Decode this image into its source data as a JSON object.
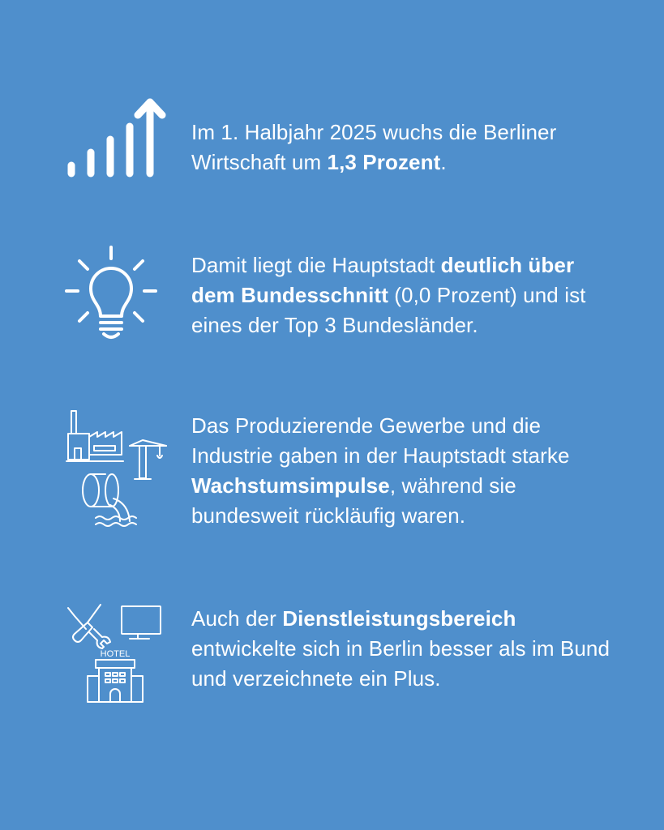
{
  "background_color": "#4f8fcc",
  "blocks": [
    {
      "icon": "growth-bars-arrow-icon",
      "parts": [
        "Im 1. Halbjahr 2025 wuchs die Berliner Wirtschaft um ",
        "1,3 Prozent",
        "."
      ]
    },
    {
      "icon": "lightbulb-icon",
      "parts": [
        "Damit liegt die Hauptstadt ",
        "deutlich über dem Bundesschnitt",
        " (0,0 Prozent) und ist eines der Top 3 Bundesländer."
      ]
    },
    {
      "icon": "industry-icons",
      "parts": [
        "Das Produzierende Gewerbe und die Industrie gaben in der Hauptstadt starke ",
        "Wachstumsimpulse",
        ", während sie bundesweit rückläufig waren."
      ]
    },
    {
      "icon": "services-icons",
      "parts": [
        "Auch der ",
        "Dienstleistungsbereich",
        " entwickelte sich in Berlin besser als im Bund und verzeichnete ein Plus."
      ]
    }
  ],
  "hotel_sign": "HOTEL"
}
